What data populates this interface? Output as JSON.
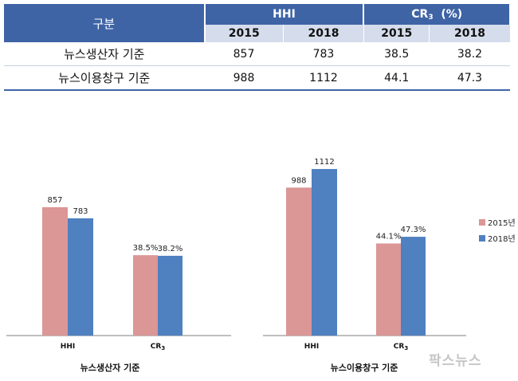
{
  "table": {
    "header_gubun": "구분",
    "header_hhi": "HHI",
    "header_cr_main": "CR",
    "header_cr_sub": "3",
    "header_cr_unit": "(%)",
    "years": [
      "2015",
      "2018",
      "2015",
      "2018"
    ],
    "rows": [
      {
        "label": "뉴스생산자 기준",
        "values": [
          "857",
          "783",
          "38.5",
          "38.2"
        ]
      },
      {
        "label": "뉴스이용창구 기준",
        "values": [
          "988",
          "1112",
          "44.1",
          "47.3"
        ]
      }
    ]
  },
  "legend": {
    "s2015": "2015년",
    "s2018": "2018년"
  },
  "colors": {
    "s2015": "#db9696",
    "s2018": "#4f80c0"
  },
  "watermark": "팍스뉴스",
  "chart_data": [
    {
      "type": "bar",
      "title": "뉴스생산자 기준",
      "categories": [
        "HHI",
        "CR3"
      ],
      "series": [
        {
          "name": "2015년",
          "values": [
            857,
            38.5
          ],
          "labels": [
            "857",
            "38.5%"
          ]
        },
        {
          "name": "2018년",
          "values": [
            783,
            38.2
          ],
          "labels": [
            "783",
            "38.2%"
          ]
        }
      ],
      "ylim_hhi": [
        0,
        1200
      ],
      "ylim_cr": [
        0,
        100
      ]
    },
    {
      "type": "bar",
      "title": "뉴스이용창구 기준",
      "categories": [
        "HHI",
        "CR3"
      ],
      "series": [
        {
          "name": "2015년",
          "values": [
            988,
            44.1
          ],
          "labels": [
            "988",
            "44.1%"
          ]
        },
        {
          "name": "2018년",
          "values": [
            1112,
            47.3
          ],
          "labels": [
            "1112",
            "47.3%"
          ]
        }
      ],
      "ylim_hhi": [
        0,
        1200
      ],
      "ylim_cr": [
        0,
        100
      ]
    }
  ]
}
